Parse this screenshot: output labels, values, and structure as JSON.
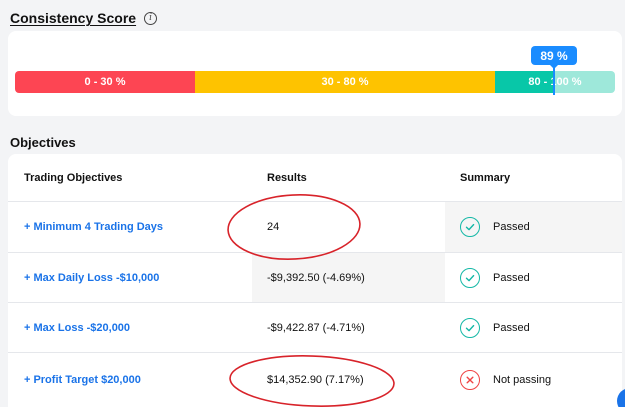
{
  "consistency": {
    "title": "Consistency Score",
    "score_label": "89 %",
    "score_value": 89,
    "segments": [
      {
        "label": "0 - 30 %",
        "color": "#fd4553"
      },
      {
        "label": "30 - 80 %",
        "color": "#fec300"
      },
      {
        "label": "80 - 100 %",
        "color": "#08c7a8"
      }
    ]
  },
  "objectives": {
    "title": "Objectives",
    "headers": {
      "objective": "Trading Objectives",
      "results": "Results",
      "summary": "Summary"
    },
    "rows": [
      {
        "objective": "Minimum 4 Trading Days",
        "result": "24",
        "status": "Passed",
        "status_icon": "check-circle-icon"
      },
      {
        "objective": "Max Daily Loss -$10,000",
        "result": "-$9,392.50 (-4.69%)",
        "status": "Passed",
        "status_icon": "check-circle-icon"
      },
      {
        "objective": "Max Loss -$20,000",
        "result": "-$9,422.87 (-4.71%)",
        "status": "Passed",
        "status_icon": "check-circle-icon"
      },
      {
        "objective": "Profit Target $20,000",
        "result": "$14,352.90 (7.17%)",
        "status": "Not passing",
        "status_icon": "x-circle-icon"
      }
    ]
  },
  "colors": {
    "accent": "#1a73e8",
    "pass": "#14b8a6",
    "fail": "#ef4444",
    "annotation": "#d8232a"
  }
}
